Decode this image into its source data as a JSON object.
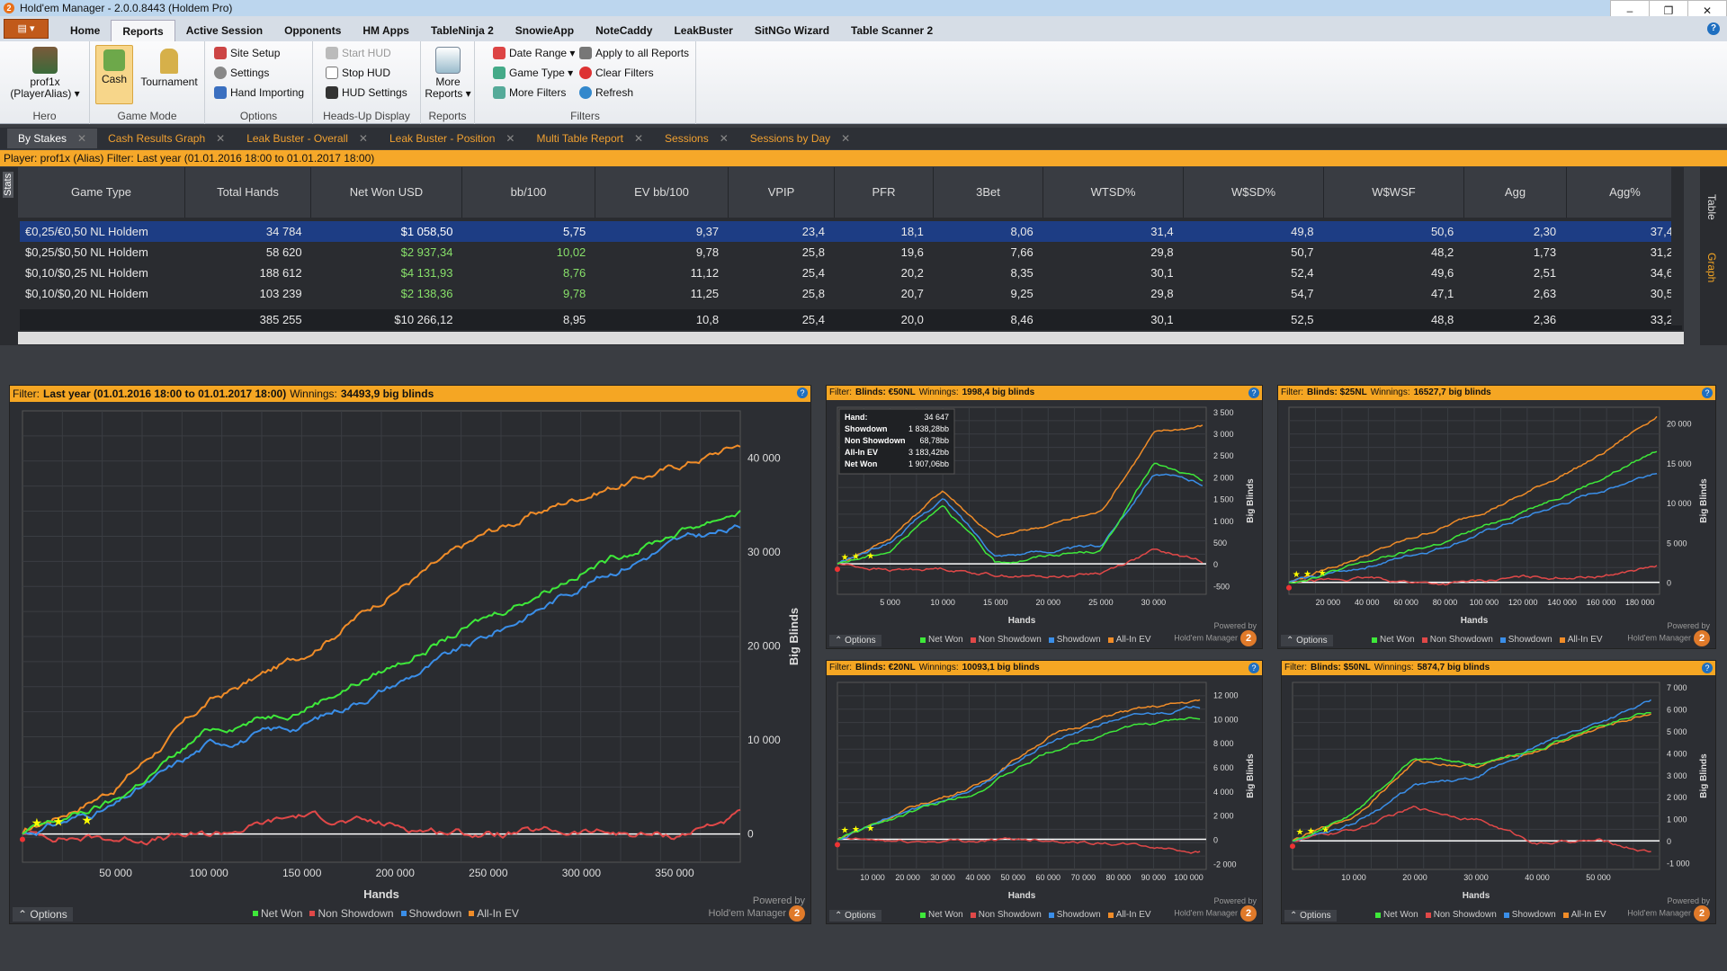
{
  "window": {
    "title": "Hold'em Manager - 2.0.0.8443 (Holdem Pro)",
    "min": "–",
    "restore": "❐",
    "close": "✕"
  },
  "menu": {
    "items": [
      "Home",
      "Reports",
      "Active Session",
      "Opponents",
      "HM Apps",
      "TableNinja 2",
      "SnowieApp",
      "NoteCaddy",
      "LeakBuster",
      "SitNGo Wizard",
      "Table Scanner 2"
    ],
    "active": "Reports",
    "help": "?"
  },
  "ribbon": {
    "hero_name": "prof1x",
    "hero_alias": "(PlayerAlias) ▾",
    "hero_group": "Hero",
    "cash": "Cash",
    "tournament": "Tournament",
    "gamemode_group": "Game Mode",
    "site_setup": "Site Setup",
    "settings": "Settings",
    "hand_importing": "Hand Importing",
    "options_group": "Options",
    "start_hud": "Start HUD",
    "stop_hud": "Stop HUD",
    "hud_settings": "HUD Settings",
    "hud_group": "Heads-Up Display",
    "more_reports": "More Reports ▾",
    "reports_group": "Reports",
    "date_range": "Date Range ▾",
    "game_type": "Game Type ▾",
    "more_filters": "More Filters",
    "apply_all": "Apply to all Reports",
    "clear_filters": "Clear Filters",
    "refresh": "Refresh",
    "filters_group": "Filters"
  },
  "tabs": [
    "By Stakes",
    "Cash Results Graph",
    "Leak Buster - Overall",
    "Leak Buster - Position",
    "Multi Table Report",
    "Sessions",
    "Sessions by Day"
  ],
  "filterbar": "Player: prof1x (Alias)   Filter: Last year (01.01.2016 18:00 to 01.01.2017 18:00)",
  "side": {
    "stats": "Stats",
    "table": "Table",
    "graph": "Graph"
  },
  "table": {
    "headers": [
      "Game Type",
      "Total Hands",
      "Net Won USD",
      "bb/100",
      "EV bb/100",
      "VPIP",
      "PFR",
      "3Bet",
      "WTSD%",
      "W$SD%",
      "W$WSF",
      "Agg",
      "Agg%"
    ],
    "rows": [
      [
        "€0,25/€0,50 NL Holdem",
        "34 784",
        "$1 058,50",
        "5,75",
        "9,37",
        "23,4",
        "18,1",
        "8,06",
        "31,4",
        "49,8",
        "50,6",
        "2,30",
        "37,4"
      ],
      [
        "$0,25/$0,50 NL Holdem",
        "58 620",
        "$2 937,34",
        "10,02",
        "9,78",
        "25,8",
        "19,6",
        "7,66",
        "29,8",
        "50,7",
        "48,2",
        "1,73",
        "31,2"
      ],
      [
        "$0,10/$0,25 NL Holdem",
        "188 612",
        "$4 131,93",
        "8,76",
        "11,12",
        "25,4",
        "20,2",
        "8,35",
        "30,1",
        "52,4",
        "49,6",
        "2,51",
        "34,6"
      ],
      [
        "$0,10/$0,20 NL Holdem",
        "103 239",
        "$2 138,36",
        "9,78",
        "11,25",
        "25,8",
        "20,7",
        "9,25",
        "29,8",
        "54,7",
        "47,1",
        "2,63",
        "30,5"
      ]
    ],
    "totals": [
      "",
      "385 255",
      "$10 266,12",
      "8,95",
      "10,8",
      "25,4",
      "20,0",
      "8,46",
      "30,1",
      "52,5",
      "48,8",
      "2,36",
      "33,2"
    ]
  },
  "legend": {
    "net_won": "Net Won",
    "non_showdown": "Non Showdown",
    "showdown": "Showdown",
    "allin_ev": "All-In EV",
    "options": "Options",
    "powered": "Powered by",
    "brand": "Hold'em Manager",
    "logo": "2"
  },
  "colors": {
    "net_won": "#3ee83a",
    "non_showdown": "#e04848",
    "showdown": "#3a8ee8",
    "allin_ev": "#f08c28",
    "accent": "#f5a623"
  },
  "charts": [
    {
      "filter": "Filter:",
      "filter_value": "Last year (01.01.2016 18:00 to 01.01.2017 18:00)",
      "winnings_label": "Winnings:",
      "winnings": "34493,9 big blinds",
      "xlabel": "Hands",
      "ylabel": "Big Blinds",
      "xticks": [
        "50 000",
        "100 000",
        "150 000",
        "200 000",
        "250 000",
        "300 000",
        "350 000"
      ],
      "yticks": [
        "0",
        "10 000",
        "20 000",
        "30 000",
        "40 000"
      ]
    },
    {
      "filter": "Filter:",
      "filter_value": "Blinds: €50NL",
      "winnings_label": "Winnings:",
      "winnings": "1998,4 big blinds",
      "xlabel": "Hands",
      "ylabel": "Big Blinds",
      "xticks": [
        "5 000",
        "10 000",
        "15 000",
        "20 000",
        "25 000",
        "30 000"
      ],
      "yticks": [
        "-500",
        "0",
        "500",
        "1 000",
        "1 500",
        "2 000",
        "2 500",
        "3 000",
        "3 500"
      ],
      "tooltip": [
        [
          "Hand:",
          "34 647"
        ],
        [
          "Showdown",
          "1 838,28bb"
        ],
        [
          "Non Showdown",
          "68,78bb"
        ],
        [
          "All-In EV",
          "3 183,42bb"
        ],
        [
          "Net Won",
          "1 907,06bb"
        ]
      ]
    },
    {
      "filter": "Filter:",
      "filter_value": "Blinds: $25NL",
      "winnings_label": "Winnings:",
      "winnings": "16527,7 big blinds",
      "xlabel": "Hands",
      "ylabel": "Big Blinds",
      "xticks": [
        "20 000",
        "40 000",
        "60 000",
        "80 000",
        "100 000",
        "120 000",
        "140 000",
        "160 000",
        "180 000"
      ],
      "yticks": [
        "0",
        "5 000",
        "10 000",
        "15 000",
        "20 000"
      ]
    },
    {
      "filter": "Filter:",
      "filter_value": "Blinds: €20NL",
      "winnings_label": "Winnings:",
      "winnings": "10093,1 big blinds",
      "xlabel": "Hands",
      "ylabel": "Big Blinds",
      "xticks": [
        "10 000",
        "20 000",
        "30 000",
        "40 000",
        "50 000",
        "60 000",
        "70 000",
        "80 000",
        "90 000",
        "100 000"
      ],
      "yticks": [
        "-2 000",
        "0",
        "2 000",
        "4 000",
        "6 000",
        "8 000",
        "10 000",
        "12 000"
      ]
    },
    {
      "filter": "Filter:",
      "filter_value": "Blinds: $50NL",
      "winnings_label": "Winnings:",
      "winnings": "5874,7 big blinds",
      "xlabel": "Hands",
      "ylabel": "Big Blinds",
      "xticks": [
        "10 000",
        "20 000",
        "30 000",
        "40 000",
        "50 000"
      ],
      "yticks": [
        "-1 000",
        "0",
        "1 000",
        "2 000",
        "3 000",
        "4 000",
        "5 000",
        "6 000",
        "7 000"
      ]
    }
  ],
  "chart_data": [
    {
      "type": "line",
      "title": "Winnings: 34493,9 big blinds",
      "xlabel": "Hands",
      "ylabel": "Big Blinds",
      "xlim": [
        0,
        385255
      ],
      "ylim": [
        -3000,
        45000
      ],
      "x": [
        0,
        50000,
        100000,
        150000,
        200000,
        250000,
        300000,
        350000,
        385255
      ],
      "series": [
        {
          "name": "Net Won",
          "values": [
            0,
            3500,
            11000,
            13500,
            18000,
            23000,
            28000,
            32000,
            34494
          ]
        },
        {
          "name": "Non Showdown",
          "values": [
            0,
            -500,
            -200,
            2000,
            800,
            0,
            200,
            -200,
            2000
          ]
        },
        {
          "name": "Showdown",
          "values": [
            0,
            3000,
            9500,
            11500,
            16000,
            21000,
            26500,
            31000,
            32500
          ]
        },
        {
          "name": "All-In EV",
          "values": [
            0,
            5000,
            14000,
            19000,
            26000,
            32000,
            36000,
            39000,
            41500
          ]
        }
      ]
    },
    {
      "type": "line",
      "title": "Winnings: 1998,4 big blinds",
      "xlabel": "Hands",
      "ylabel": "Big Blinds",
      "xlim": [
        0,
        35000
      ],
      "ylim": [
        -700,
        3600
      ],
      "x": [
        0,
        5000,
        10000,
        15000,
        20000,
        25000,
        30000,
        34647
      ],
      "series": [
        {
          "name": "Net Won",
          "values": [
            0,
            300,
            1400,
            0,
            200,
            300,
            2300,
            1907
          ]
        },
        {
          "name": "Non Showdown",
          "values": [
            0,
            -150,
            -100,
            -250,
            -300,
            -200,
            300,
            69
          ]
        },
        {
          "name": "Showdown",
          "values": [
            0,
            500,
            1500,
            200,
            300,
            400,
            2100,
            1838
          ]
        },
        {
          "name": "All-In EV",
          "values": [
            0,
            600,
            1700,
            600,
            900,
            1200,
            3000,
            3183
          ]
        }
      ]
    },
    {
      "type": "line",
      "title": "Winnings: 16527,7 big blinds",
      "xlabel": "Hands",
      "ylabel": "Big Blinds",
      "xlim": [
        0,
        190000
      ],
      "ylim": [
        -1500,
        22000
      ],
      "x": [
        0,
        40000,
        80000,
        120000,
        160000,
        188612
      ],
      "series": [
        {
          "name": "Net Won",
          "values": [
            0,
            2500,
            5000,
            9000,
            13000,
            16528
          ]
        },
        {
          "name": "Non Showdown",
          "values": [
            0,
            500,
            -200,
            600,
            800,
            2000
          ]
        },
        {
          "name": "Showdown",
          "values": [
            0,
            2000,
            4500,
            8000,
            11500,
            14000
          ]
        },
        {
          "name": "All-In EV",
          "values": [
            0,
            3500,
            7000,
            11000,
            16000,
            21000
          ]
        }
      ]
    },
    {
      "type": "line",
      "title": "Winnings: 10093,1 big blinds",
      "xlabel": "Hands",
      "ylabel": "Big Blinds",
      "xlim": [
        0,
        105000
      ],
      "ylim": [
        -2500,
        13000
      ],
      "x": [
        0,
        20000,
        40000,
        60000,
        80000,
        103239
      ],
      "series": [
        {
          "name": "Net Won",
          "values": [
            0,
            2200,
            4000,
            7200,
            9200,
            10093
          ]
        },
        {
          "name": "Non Showdown",
          "values": [
            0,
            -200,
            -100,
            0,
            -400,
            -1000
          ]
        },
        {
          "name": "Showdown",
          "values": [
            0,
            2300,
            4300,
            8000,
            10000,
            11000
          ]
        },
        {
          "name": "All-In EV",
          "values": [
            0,
            2500,
            4500,
            8500,
            10500,
            11500
          ]
        }
      ]
    },
    {
      "type": "line",
      "title": "Winnings: 5874,7 big blinds",
      "xlabel": "Hands",
      "ylabel": "Big Blinds",
      "xlim": [
        0,
        60000
      ],
      "ylim": [
        -1300,
        7200
      ],
      "x": [
        0,
        10000,
        20000,
        30000,
        40000,
        50000,
        58620
      ],
      "series": [
        {
          "name": "Net Won",
          "values": [
            0,
            1200,
            3800,
            3500,
            4200,
            5200,
            5875
          ]
        },
        {
          "name": "Non Showdown",
          "values": [
            0,
            500,
            1500,
            1000,
            -100,
            0,
            -500
          ]
        },
        {
          "name": "Showdown",
          "values": [
            0,
            800,
            2500,
            2800,
            4300,
            5400,
            6300
          ]
        },
        {
          "name": "All-In EV",
          "values": [
            0,
            1100,
            3600,
            3400,
            4100,
            5100,
            5800
          ]
        }
      ]
    }
  ]
}
